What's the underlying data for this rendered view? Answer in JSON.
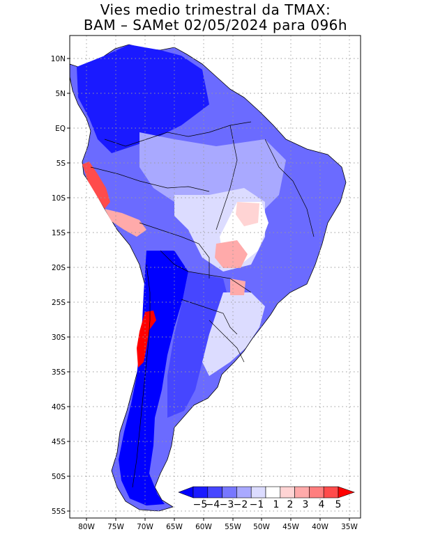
{
  "title_line1": "Vies medio trimestral da TMAX:",
  "title_line2": "BAM – SAMet 02/05/2024  para 096h",
  "lat_labels": [
    "10N",
    "5N",
    "EQ",
    "5S",
    "10S",
    "15S",
    "20S",
    "25S",
    "30S",
    "35S",
    "40S",
    "45S",
    "50S",
    "55S"
  ],
  "lon_labels": [
    "80W",
    "75W",
    "70W",
    "65W",
    "60W",
    "55W",
    "50W",
    "45W",
    "40W",
    "35W"
  ],
  "colorbar": {
    "labels": [
      "−5",
      "−4",
      "−3",
      "−2",
      "−1",
      "1",
      "2",
      "3",
      "4",
      "5"
    ],
    "colors": [
      "#0000ff",
      "#1a1aff",
      "#4646ff",
      "#7777ff",
      "#a9a9ff",
      "#dcdcff",
      "#ffffff",
      "#ffd4d4",
      "#ffaaaa",
      "#ff7e7e",
      "#ff4c4c",
      "#ff0000"
    ]
  },
  "colors": {
    "grid": "#9a9a9a",
    "border": "#000000"
  }
}
